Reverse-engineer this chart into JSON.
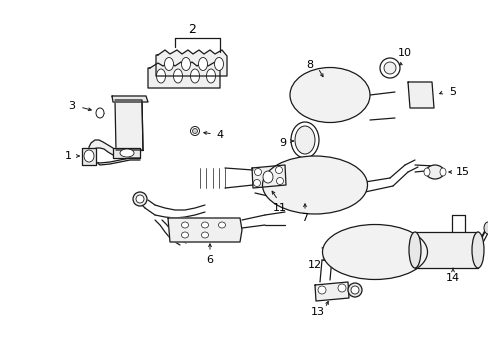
{
  "background_color": "#ffffff",
  "line_color": "#1a1a1a",
  "text_color": "#000000",
  "fig_width": 4.89,
  "fig_height": 3.6,
  "dpi": 100,
  "lw": 0.9
}
